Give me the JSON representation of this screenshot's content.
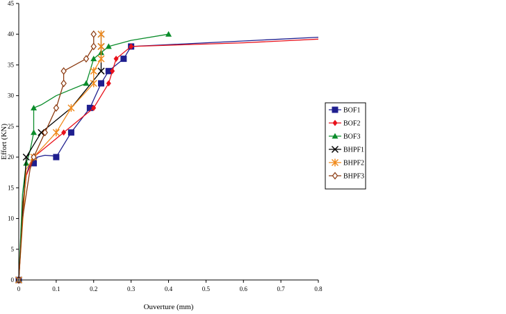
{
  "chart_data": {
    "type": "line",
    "title": "",
    "xlabel": "Ouverture (mm)",
    "ylabel": "Effort (KN)",
    "xlim": [
      0,
      0.8
    ],
    "ylim": [
      0,
      45
    ],
    "xticks": [
      0,
      0.1,
      0.2,
      0.3,
      0.4,
      0.5,
      0.6,
      0.7,
      0.8
    ],
    "xtick_labels": [
      "0",
      "0.1",
      "0.2",
      "0.3",
      "0.4",
      "0.5",
      "0.6",
      "0.7",
      "0.8"
    ],
    "yticks": [
      0,
      5,
      10,
      15,
      20,
      25,
      30,
      35,
      40,
      45
    ],
    "ytick_labels": [
      "0",
      "5",
      "10",
      "15",
      "20",
      "25",
      "30",
      "35",
      "40",
      "45"
    ],
    "grid": false,
    "legend_position": "right",
    "series": [
      {
        "name": "BOF1",
        "color": "#1f1f8f",
        "marker": "square",
        "x": [
          0,
          0.04,
          0.1,
          0.14,
          0.19,
          0.22,
          0.24,
          0.28,
          0.3
        ],
        "y": [
          0,
          19,
          20,
          24,
          28,
          32,
          34,
          36,
          38
        ],
        "curve_x": [
          0,
          0.01,
          0.02,
          0.03,
          0.04,
          0.05,
          0.07,
          0.09,
          0.1,
          0.14,
          0.19,
          0.22,
          0.24,
          0.28,
          0.3,
          0.4,
          0.5,
          0.6,
          0.7,
          0.8
        ],
        "curve_y": [
          0,
          11,
          17,
          19,
          19,
          20,
          20.3,
          20.2,
          20,
          24,
          28,
          32,
          34,
          36,
          38,
          38.3,
          38.6,
          38.9,
          39.2,
          39.5
        ]
      },
      {
        "name": "BOF2",
        "color": "#e8101a",
        "marker": "diamond",
        "x": [
          0,
          0.04,
          0.12,
          0.2,
          0.24,
          0.25,
          0.26,
          0.3
        ],
        "y": [
          0,
          20,
          24,
          28,
          32,
          34,
          36,
          38
        ],
        "curve_x": [
          0,
          0.01,
          0.02,
          0.04,
          0.08,
          0.12,
          0.16,
          0.2,
          0.24,
          0.25,
          0.26,
          0.3,
          0.4,
          0.5,
          0.6,
          0.7,
          0.8
        ],
        "curve_y": [
          0,
          12,
          17,
          20,
          22,
          24,
          26,
          28,
          32,
          34,
          36,
          38,
          38.2,
          38.4,
          38.6,
          38.9,
          39.2
        ]
      },
      {
        "name": "BOF3",
        "color": "#0a8c2a",
        "marker": "triangle",
        "x": [
          0,
          0.02,
          0.04,
          0.04,
          0.18,
          0.2,
          0.22,
          0.24,
          0.4
        ],
        "y": [
          0,
          19,
          24,
          28,
          32,
          36,
          37,
          38,
          40
        ],
        "curve_x": [
          0,
          0.01,
          0.02,
          0.03,
          0.04,
          0.04,
          0.06,
          0.1,
          0.14,
          0.18,
          0.2,
          0.22,
          0.24,
          0.3,
          0.4
        ],
        "curve_y": [
          0,
          14,
          19,
          21,
          24,
          28,
          28.5,
          30,
          31,
          32,
          36,
          37,
          38,
          39,
          40
        ]
      },
      {
        "name": "BHPF1",
        "color": "#000000",
        "marker": "x",
        "x": [
          0,
          0.02,
          0.06,
          0.22,
          0.22,
          0.22
        ],
        "y": [
          0,
          20,
          24,
          34,
          38,
          40
        ],
        "curve_x": [
          0,
          0.02,
          0.04,
          0.06,
          0.1,
          0.14,
          0.18,
          0.22,
          0.22,
          0.22
        ],
        "curve_y": [
          0,
          20,
          22,
          24,
          26,
          28,
          31,
          34,
          38,
          40
        ]
      },
      {
        "name": "BHPF2",
        "color": "#f08a1c",
        "marker": "star",
        "x": [
          0,
          0.04,
          0.1,
          0.14,
          0.2,
          0.2,
          0.22,
          0.22,
          0.22
        ],
        "y": [
          0,
          20,
          24,
          28,
          32,
          34,
          36,
          38,
          40
        ],
        "curve_x": [
          0,
          0.02,
          0.04,
          0.07,
          0.1,
          0.14,
          0.2,
          0.2,
          0.22,
          0.22,
          0.22
        ],
        "curve_y": [
          0,
          18,
          20,
          22,
          24,
          28,
          32,
          34,
          36,
          38,
          40
        ]
      },
      {
        "name": "BHPF3",
        "color": "#8b3a10",
        "marker": "open-diamond",
        "x": [
          0,
          0.04,
          0.07,
          0.1,
          0.12,
          0.12,
          0.18,
          0.2,
          0.2
        ],
        "y": [
          0,
          20,
          24,
          28,
          32,
          34,
          36,
          38,
          40
        ],
        "curve_x": [
          0,
          0.01,
          0.03,
          0.04,
          0.07,
          0.1,
          0.12,
          0.12,
          0.18,
          0.2,
          0.2
        ],
        "curve_y": [
          0,
          10,
          18,
          20,
          24,
          28,
          32,
          34,
          36,
          38,
          40
        ]
      }
    ]
  }
}
